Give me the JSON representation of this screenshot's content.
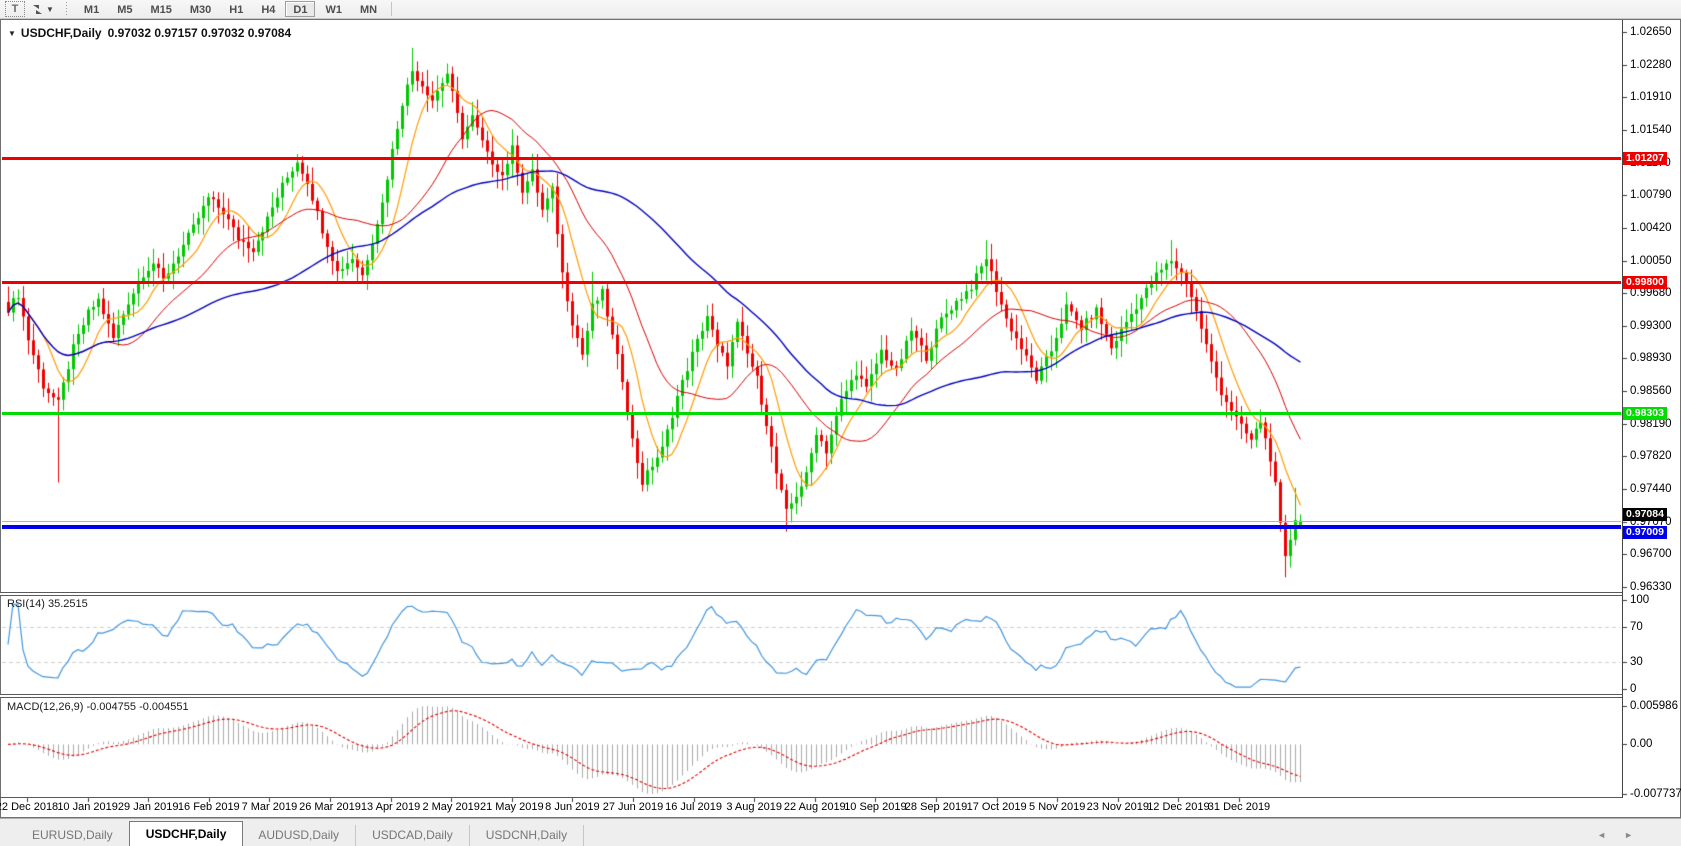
{
  "toolbar": {
    "text_tool_label": "T",
    "timeframe_buttons": [
      {
        "label": "M1",
        "active": false
      },
      {
        "label": "M5",
        "active": false
      },
      {
        "label": "M15",
        "active": false
      },
      {
        "label": "M30",
        "active": false
      },
      {
        "label": "H1",
        "active": false
      },
      {
        "label": "H4",
        "active": false
      },
      {
        "label": "D1",
        "active": true
      },
      {
        "label": "W1",
        "active": false
      },
      {
        "label": "MN",
        "active": false
      }
    ]
  },
  "header": {
    "collapse_icon": "▼"
  },
  "chart_data": {
    "type": "candlestick",
    "symbol_title": "USDCHF,Daily",
    "timeframe": "Daily",
    "ohlc_text": "0.97032 0.97157 0.97032 0.97084",
    "open": "0.97032",
    "high": "0.97157",
    "low": "0.97032",
    "close": "0.97084",
    "y_axis": {
      "top_price": 1.0265,
      "bottom_price": 0.9633,
      "ticks": [
        "1.02650",
        "1.02280",
        "1.01910",
        "1.01540",
        "1.01170",
        "1.00790",
        "1.00420",
        "1.00050",
        "0.99680",
        "0.99300",
        "0.98930",
        "0.98560",
        "0.98190",
        "0.97820",
        "0.97440",
        "0.97070",
        "0.96700",
        "0.96330"
      ]
    },
    "x_labels": [
      "22 Dec 2018",
      "10 Jan 2019",
      "29 Jan 2019",
      "16 Feb 2019",
      "7 Mar 2019",
      "26 Mar 2019",
      "13 Apr 2019",
      "2 May 2019",
      "21 May 2019",
      "8 Jun 2019",
      "27 Jun 2019",
      "16 Jul 2019",
      "3 Aug 2019",
      "22 Aug 2019",
      "10 Sep 2019",
      "28 Sep 2019",
      "17 Oct 2019",
      "5 Nov 2019",
      "23 Nov 2019",
      "12 Dec 2019",
      "31 Dec 2019"
    ],
    "horizontal_lines": [
      {
        "price": "1.01207",
        "value": 1.01207,
        "color": "#ee0000",
        "thickness": 3
      },
      {
        "price": "0.99800",
        "value": 0.998,
        "color": "#ee0000",
        "thickness": 3
      },
      {
        "price": "0.98303",
        "value": 0.98303,
        "color": "#00dc00",
        "thickness": 3
      },
      {
        "price": "0.97009",
        "value": 0.97009,
        "color": "#0000ee",
        "thickness": 4
      }
    ],
    "current_price_marker": {
      "price": "0.97084",
      "value": 0.97084,
      "line_color": "#b4b4b4",
      "badge_color": "#000000"
    },
    "candle_count": 260,
    "colors": {
      "bull": "#00c800",
      "bear": "#ee0000"
    },
    "moving_averages": [
      {
        "period": 8,
        "color": "#ff9c00",
        "width": 1.2
      },
      {
        "period": 21,
        "color": "#d40000",
        "width": 1
      },
      {
        "period": 55,
        "color": "#0000bb",
        "width": 1.4
      }
    ],
    "price_path": [
      [
        0,
        0.995
      ],
      [
        2,
        0.9966
      ],
      [
        4,
        0.9915
      ],
      [
        7,
        0.9862
      ],
      [
        10,
        0.9842
      ],
      [
        13,
        0.9905
      ],
      [
        16,
        0.9945
      ],
      [
        18,
        0.996
      ],
      [
        21,
        0.9916
      ],
      [
        24,
        0.9958
      ],
      [
        27,
        0.999
      ],
      [
        29,
        1.0002
      ],
      [
        31,
        0.9982
      ],
      [
        34,
        1.0012
      ],
      [
        37,
        1.0042
      ],
      [
        40,
        1.0076
      ],
      [
        43,
        1.006
      ],
      [
        46,
        1.003
      ],
      [
        49,
        1.0018
      ],
      [
        52,
        1.0052
      ],
      [
        55,
        1.009
      ],
      [
        58,
        1.0118
      ],
      [
        60,
        1.0095
      ],
      [
        63,
        1.004
      ],
      [
        66,
        0.9992
      ],
      [
        69,
        1.0008
      ],
      [
        71,
        0.9988
      ],
      [
        73,
        1.0028
      ],
      [
        75,
        1.007
      ],
      [
        77,
        1.013
      ],
      [
        79,
        1.0185
      ],
      [
        81,
        1.0221
      ],
      [
        83,
        1.0205
      ],
      [
        85,
        1.0188
      ],
      [
        88,
        1.0218
      ],
      [
        91,
        1.0146
      ],
      [
        93,
        1.0168
      ],
      [
        96,
        1.0125
      ],
      [
        99,
        1.0102
      ],
      [
        101,
        1.0132
      ],
      [
        103,
        1.0085
      ],
      [
        105,
        1.0105
      ],
      [
        107,
        1.0062
      ],
      [
        109,
        1.0085
      ],
      [
        111,
        0.999
      ],
      [
        113,
        0.9935
      ],
      [
        115,
        0.9898
      ],
      [
        117,
        0.9952
      ],
      [
        119,
        0.9968
      ],
      [
        121,
        0.9918
      ],
      [
        123,
        0.987
      ],
      [
        125,
        0.98
      ],
      [
        127,
        0.9752
      ],
      [
        129,
        0.9772
      ],
      [
        131,
        0.979
      ],
      [
        134,
        0.985
      ],
      [
        137,
        0.9898
      ],
      [
        140,
        0.9942
      ],
      [
        142,
        0.9905
      ],
      [
        144,
        0.9888
      ],
      [
        146,
        0.9932
      ],
      [
        148,
        0.9898
      ],
      [
        150,
        0.987
      ],
      [
        152,
        0.982
      ],
      [
        154,
        0.9762
      ],
      [
        156,
        0.9718
      ],
      [
        158,
        0.9738
      ],
      [
        160,
        0.976
      ],
      [
        162,
        0.981
      ],
      [
        164,
        0.9788
      ],
      [
        167,
        0.9845
      ],
      [
        170,
        0.9878
      ],
      [
        172,
        0.9858
      ],
      [
        175,
        0.9902
      ],
      [
        178,
        0.9878
      ],
      [
        181,
        0.9925
      ],
      [
        184,
        0.9895
      ],
      [
        187,
        0.9938
      ],
      [
        190,
        0.9958
      ],
      [
        193,
        0.9975
      ],
      [
        196,
        1.0008
      ],
      [
        198,
        0.9972
      ],
      [
        200,
        0.9938
      ],
      [
        203,
        0.9905
      ],
      [
        206,
        0.987
      ],
      [
        209,
        0.9902
      ],
      [
        212,
        0.9952
      ],
      [
        215,
        0.9928
      ],
      [
        218,
        0.9948
      ],
      [
        221,
        0.9905
      ],
      [
        224,
        0.9935
      ],
      [
        227,
        0.9962
      ],
      [
        230,
        0.9988
      ],
      [
        233,
        1.0005
      ],
      [
        236,
        0.9982
      ],
      [
        239,
        0.9928
      ],
      [
        241,
        0.9888
      ],
      [
        243,
        0.9855
      ],
      [
        245,
        0.9835
      ],
      [
        247,
        0.9815
      ],
      [
        249,
        0.98
      ],
      [
        251,
        0.9822
      ],
      [
        253,
        0.978
      ],
      [
        254,
        0.9748
      ],
      [
        255,
        0.9702
      ],
      [
        256,
        0.9665
      ],
      [
        257,
        0.9688
      ],
      [
        258,
        0.9712
      ],
      [
        259,
        0.9708
      ]
    ],
    "wick_spikes": {
      "10": {
        "low": 0.9752
      },
      "58": {
        "high": 1.0126
      },
      "81": {
        "high": 1.0247
      },
      "117": {
        "high": 0.9992
      },
      "156": {
        "low": 0.9696
      },
      "196": {
        "high": 1.0028
      },
      "233": {
        "high": 1.0028
      },
      "256": {
        "low": 0.9644
      },
      "258": {
        "high": 0.9746
      }
    },
    "last_candle": {
      "o": 0.97032,
      "h": 0.97157,
      "l": 0.97032,
      "c": 0.97084
    },
    "rsi": {
      "label": "RSI(14) 35.2515",
      "period": 14,
      "current_value": "35.2515",
      "color": "#4596dc",
      "level_lines": [
        70,
        30
      ],
      "axis_ticks": [
        {
          "label": "100",
          "v": 100
        },
        {
          "label": "70",
          "v": 70
        },
        {
          "label": "30",
          "v": 30
        },
        {
          "label": "0",
          "v": 0
        }
      ]
    },
    "macd": {
      "label": "MACD(12,26,9) -0.004755 -0.004551",
      "fast": 12,
      "slow": 26,
      "signal": 9,
      "current_macd": "-0.004755",
      "current_signal": "-0.004551",
      "histogram_color": "#ababab",
      "signal_color": "#e00000",
      "axis_ticks": [
        {
          "label": "0.005986",
          "v": 0.005986
        },
        {
          "label": "0.00",
          "v": 0
        },
        {
          "label": "-0.007737",
          "v": -0.007737
        }
      ]
    }
  },
  "tab_bar": {
    "scroll_left_icon": "◄",
    "scroll_right_icon": "►",
    "tabs": [
      {
        "label": "EURUSD,Daily",
        "active": false
      },
      {
        "label": "USDCHF,Daily",
        "active": true
      },
      {
        "label": "AUDUSD,Daily",
        "active": false
      },
      {
        "label": "USDCAD,Daily",
        "active": false
      },
      {
        "label": "USDCNH,Daily",
        "active": false
      }
    ]
  }
}
